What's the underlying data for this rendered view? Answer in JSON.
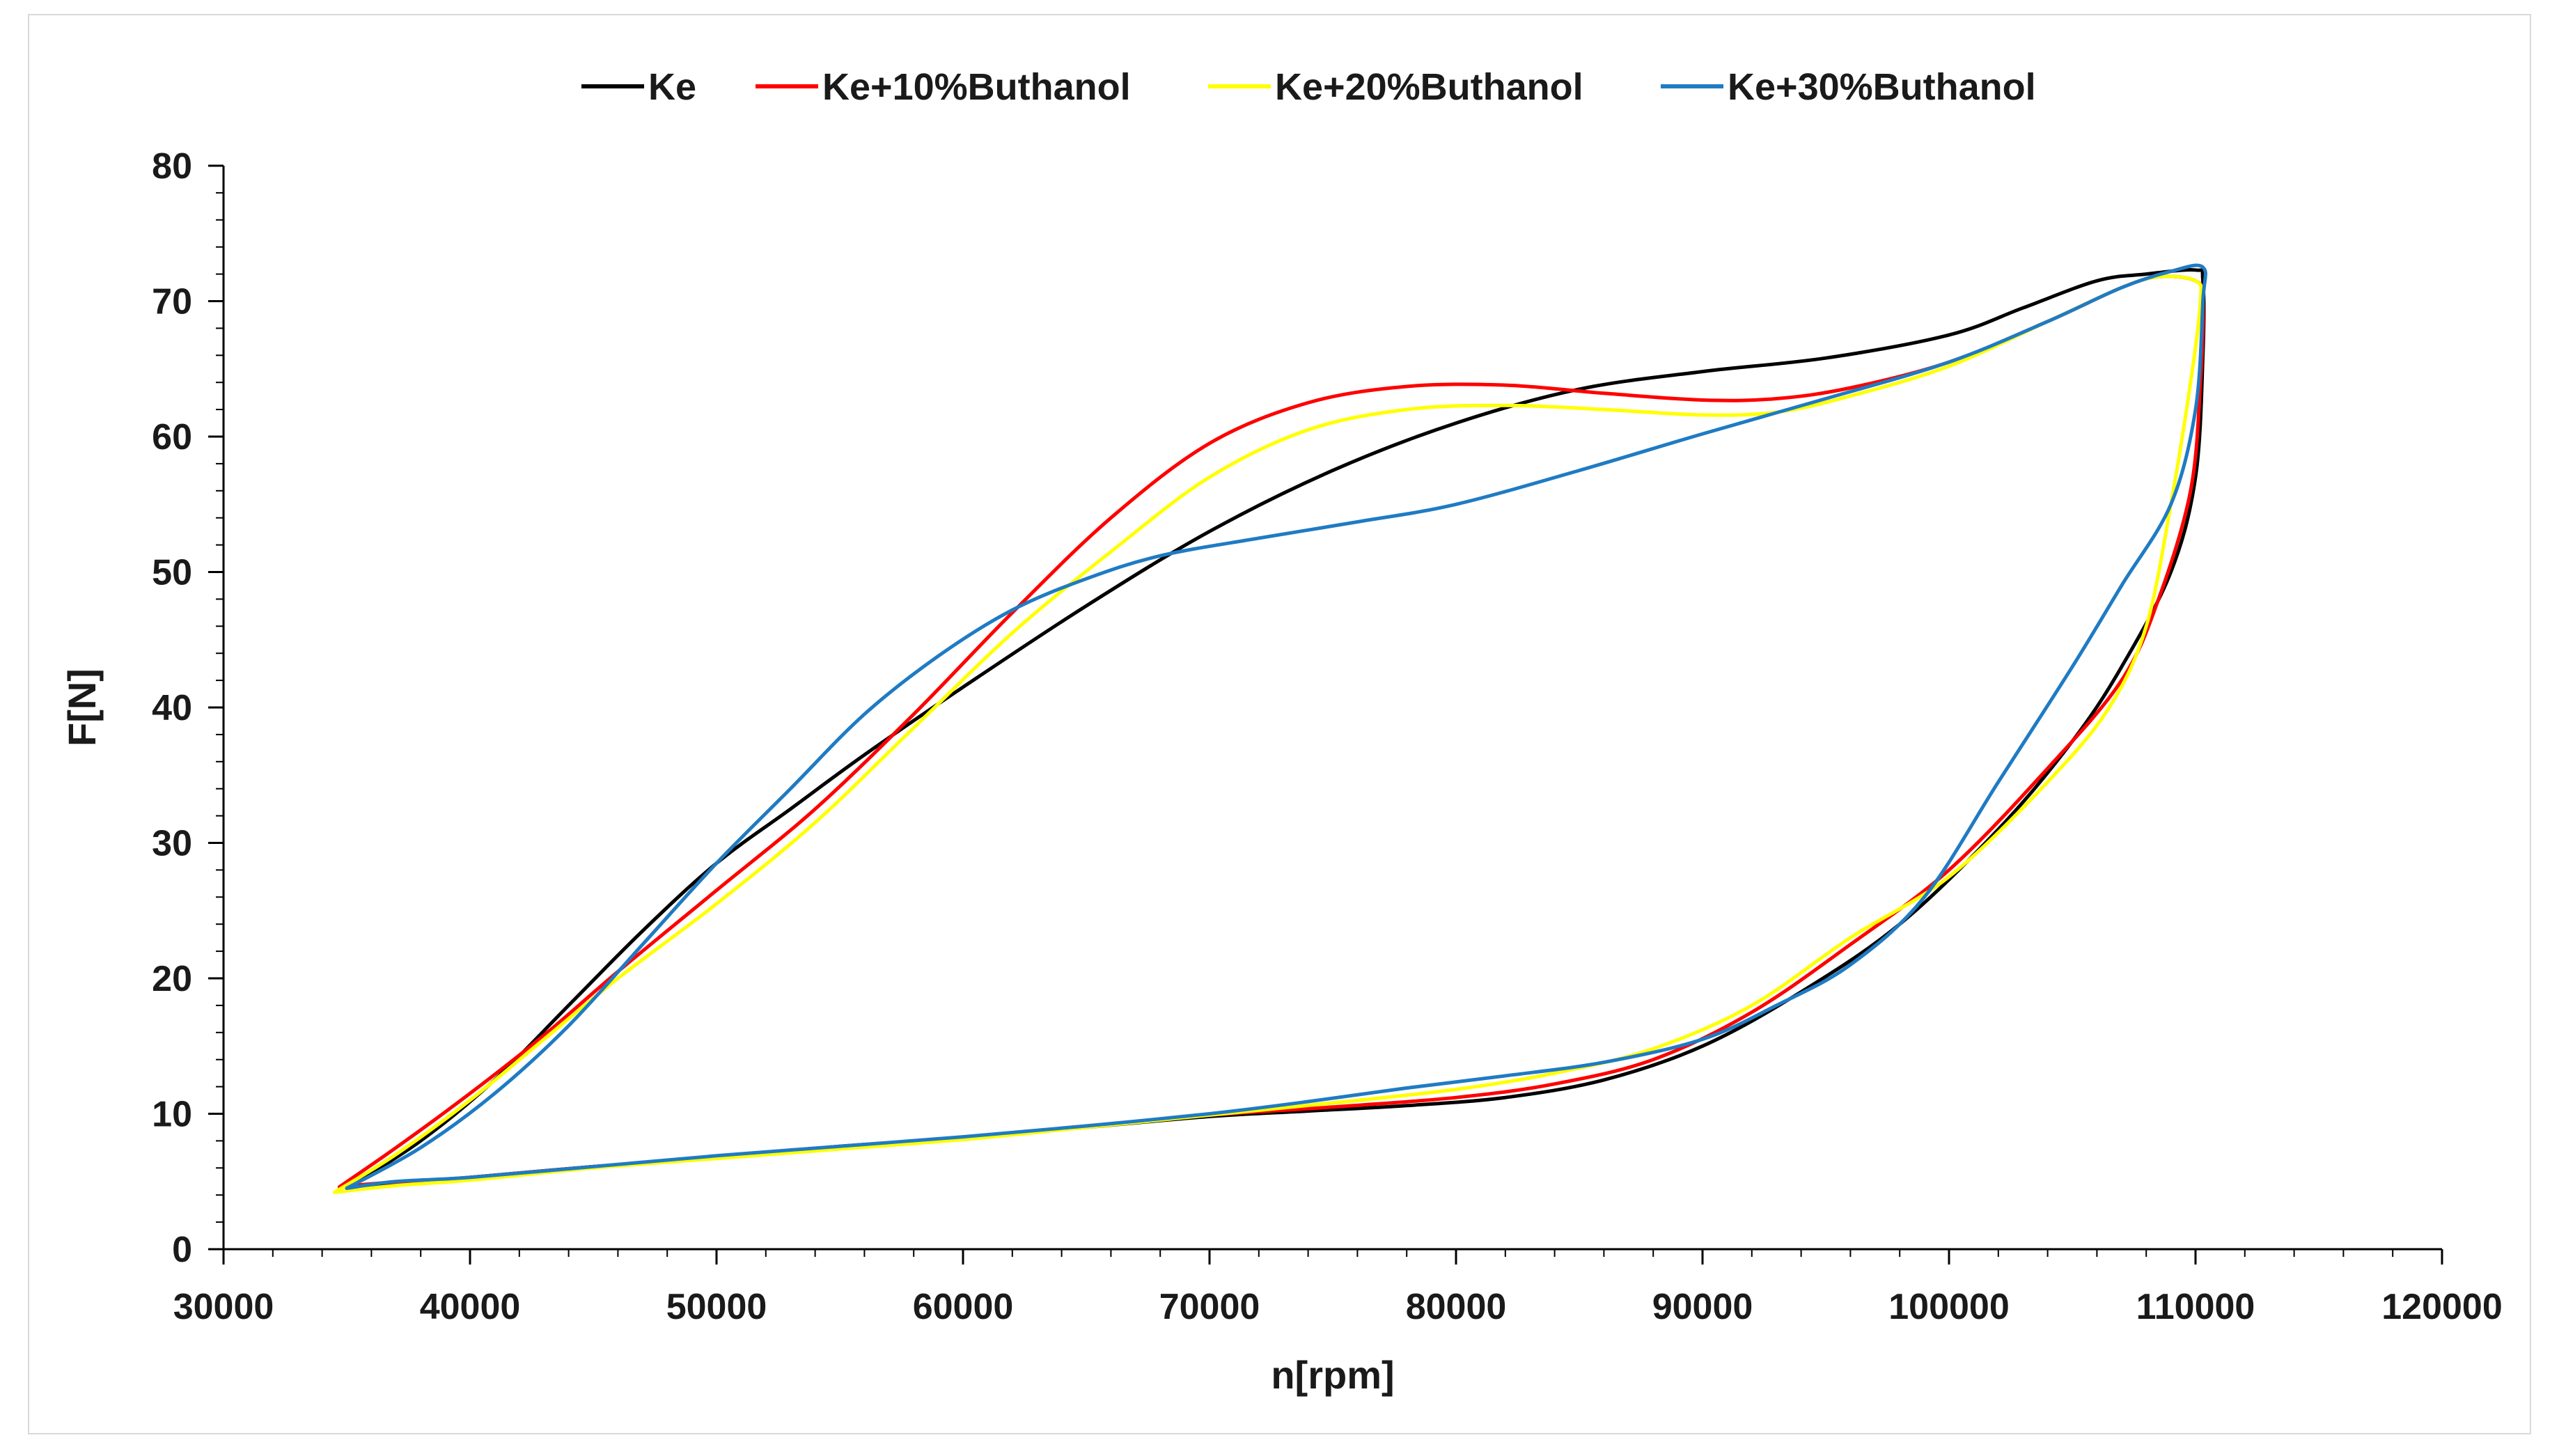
{
  "chart_data": {
    "type": "line",
    "title": "",
    "xlabel": "n[rpm]",
    "ylabel": "F[N]",
    "xlim": [
      30000,
      120000
    ],
    "ylim": [
      0,
      80
    ],
    "x_ticks": [
      30000,
      40000,
      50000,
      60000,
      70000,
      80000,
      90000,
      100000,
      110000,
      120000
    ],
    "y_ticks": [
      0,
      10,
      20,
      30,
      40,
      50,
      60,
      70,
      80
    ],
    "x_tick_labels": [
      "30000",
      "40000",
      "50000",
      "60000",
      "70000",
      "80000",
      "90000",
      "100000",
      "110000",
      "120000"
    ],
    "y_tick_labels": [
      "0",
      "10",
      "20",
      "30",
      "40",
      "50",
      "60",
      "70",
      "80"
    ],
    "grid": false,
    "legend_position": "top",
    "series": [
      {
        "name": "Ke",
        "color": "#000000",
        "points": [
          [
            35000,
            4.5
          ],
          [
            38000,
            8
          ],
          [
            41000,
            12.5
          ],
          [
            44000,
            18
          ],
          [
            47000,
            23.5
          ],
          [
            50000,
            28.5
          ],
          [
            53000,
            32.5
          ],
          [
            56000,
            36.5
          ],
          [
            60000,
            41.5
          ],
          [
            65000,
            47.5
          ],
          [
            70000,
            53
          ],
          [
            75000,
            57.5
          ],
          [
            80000,
            61
          ],
          [
            85000,
            63.5
          ],
          [
            90000,
            64.8
          ],
          [
            95000,
            65.8
          ],
          [
            100000,
            67.5
          ],
          [
            103000,
            69.5
          ],
          [
            106000,
            71.5
          ],
          [
            108000,
            72
          ],
          [
            110000,
            72.3
          ],
          [
            110300,
            71.5
          ],
          [
            110300,
            66
          ],
          [
            110000,
            57
          ],
          [
            109000,
            50
          ],
          [
            107000,
            43
          ],
          [
            105000,
            37.5
          ],
          [
            102000,
            31
          ],
          [
            98000,
            24
          ],
          [
            94000,
            19
          ],
          [
            90000,
            15
          ],
          [
            86000,
            12.5
          ],
          [
            82000,
            11.2
          ],
          [
            78000,
            10.6
          ],
          [
            74000,
            10.2
          ],
          [
            70000,
            9.8
          ],
          [
            65000,
            9
          ],
          [
            60000,
            8.2
          ],
          [
            55000,
            7.6
          ],
          [
            50000,
            6.8
          ],
          [
            45000,
            6.1
          ],
          [
            40000,
            5.3
          ],
          [
            37000,
            4.8
          ],
          [
            35200,
            4.5
          ]
        ]
      },
      {
        "name": "Ke+10%Buthanol",
        "color": "#ff0000",
        "points": [
          [
            34700,
            4.6
          ],
          [
            37000,
            7.5
          ],
          [
            40000,
            11.5
          ],
          [
            43000,
            15.8
          ],
          [
            46000,
            20.5
          ],
          [
            50000,
            26.5
          ],
          [
            54000,
            32.5
          ],
          [
            58000,
            39.5
          ],
          [
            62000,
            47
          ],
          [
            66000,
            54
          ],
          [
            70000,
            59.5
          ],
          [
            74000,
            62.5
          ],
          [
            78000,
            63.7
          ],
          [
            82000,
            63.8
          ],
          [
            86000,
            63.2
          ],
          [
            90000,
            62.7
          ],
          [
            93000,
            62.8
          ],
          [
            96000,
            63.6
          ],
          [
            100000,
            65.5
          ],
          [
            104000,
            68.5
          ],
          [
            107000,
            71
          ],
          [
            108500,
            71.8
          ],
          [
            110000,
            71.5
          ],
          [
            110300,
            70
          ],
          [
            110200,
            64
          ],
          [
            109800,
            56
          ],
          [
            108500,
            48
          ],
          [
            107000,
            42
          ],
          [
            104000,
            35.5
          ],
          [
            100000,
            28
          ],
          [
            96000,
            22.5
          ],
          [
            92000,
            17.5
          ],
          [
            88000,
            14
          ],
          [
            84000,
            12.2
          ],
          [
            80000,
            11.2
          ],
          [
            75000,
            10.5
          ],
          [
            70000,
            9.9
          ],
          [
            65000,
            9.1
          ],
          [
            60000,
            8.2
          ],
          [
            55000,
            7.5
          ],
          [
            50000,
            6.8
          ],
          [
            45000,
            6.1
          ],
          [
            40000,
            5.3
          ],
          [
            36500,
            4.9
          ],
          [
            34700,
            4.6
          ]
        ]
      },
      {
        "name": "Ke+20%Buthanol",
        "color": "#ffff00",
        "points": [
          [
            34500,
            4.2
          ],
          [
            37000,
            7
          ],
          [
            40000,
            11
          ],
          [
            43000,
            15.5
          ],
          [
            46000,
            20
          ],
          [
            50000,
            25.5
          ],
          [
            54000,
            31.5
          ],
          [
            58000,
            38.5
          ],
          [
            62000,
            45.5
          ],
          [
            66000,
            51.5
          ],
          [
            70000,
            57
          ],
          [
            74000,
            60.5
          ],
          [
            78000,
            62
          ],
          [
            82000,
            62.3
          ],
          [
            86000,
            62
          ],
          [
            90000,
            61.6
          ],
          [
            93000,
            61.8
          ],
          [
            96000,
            63
          ],
          [
            100000,
            65.2
          ],
          [
            104000,
            68.5
          ],
          [
            107000,
            71
          ],
          [
            108500,
            71.8
          ],
          [
            110000,
            71.5
          ],
          [
            110200,
            70
          ],
          [
            109800,
            64
          ],
          [
            109000,
            55
          ],
          [
            108000,
            46
          ],
          [
            106500,
            40
          ],
          [
            104000,
            34.5
          ],
          [
            100000,
            27.5
          ],
          [
            96000,
            23
          ],
          [
            92000,
            18
          ],
          [
            88000,
            14.8
          ],
          [
            84000,
            13
          ],
          [
            80000,
            11.8
          ],
          [
            75000,
            10.8
          ],
          [
            70000,
            9.9
          ],
          [
            65000,
            9
          ],
          [
            60000,
            8.1
          ],
          [
            55000,
            7.4
          ],
          [
            50000,
            6.7
          ],
          [
            45000,
            6
          ],
          [
            40000,
            5.1
          ],
          [
            37000,
            4.7
          ],
          [
            34500,
            4.2
          ]
        ]
      },
      {
        "name": "Ke+30%Buthanol",
        "color": "#1f7bc3",
        "points": [
          [
            35000,
            4.5
          ],
          [
            38000,
            7.5
          ],
          [
            41000,
            11.5
          ],
          [
            44000,
            16.5
          ],
          [
            47000,
            22.5
          ],
          [
            50000,
            28.5
          ],
          [
            53000,
            34
          ],
          [
            56000,
            39.5
          ],
          [
            59000,
            43.8
          ],
          [
            62000,
            47.2
          ],
          [
            65000,
            49.5
          ],
          [
            68000,
            51.2
          ],
          [
            72000,
            52.5
          ],
          [
            76000,
            53.7
          ],
          [
            80000,
            55
          ],
          [
            85000,
            57.5
          ],
          [
            90000,
            60.2
          ],
          [
            95000,
            62.8
          ],
          [
            100000,
            65.5
          ],
          [
            104000,
            68.5
          ],
          [
            107000,
            71
          ],
          [
            109000,
            72.2
          ],
          [
            110300,
            72.5
          ],
          [
            110300,
            70
          ],
          [
            110000,
            62
          ],
          [
            109000,
            55
          ],
          [
            107000,
            49
          ],
          [
            105000,
            43
          ],
          [
            102000,
            34.5
          ],
          [
            99000,
            26
          ],
          [
            96000,
            21
          ],
          [
            93000,
            18
          ],
          [
            90000,
            15.5
          ],
          [
            86000,
            13.8
          ],
          [
            82000,
            12.8
          ],
          [
            78000,
            11.9
          ],
          [
            74000,
            10.9
          ],
          [
            70000,
            10
          ],
          [
            65000,
            9.1
          ],
          [
            60000,
            8.3
          ],
          [
            55000,
            7.6
          ],
          [
            50000,
            6.9
          ],
          [
            45000,
            6.1
          ],
          [
            40000,
            5.3
          ],
          [
            37000,
            5
          ],
          [
            35000,
            4.5
          ]
        ]
      }
    ]
  }
}
